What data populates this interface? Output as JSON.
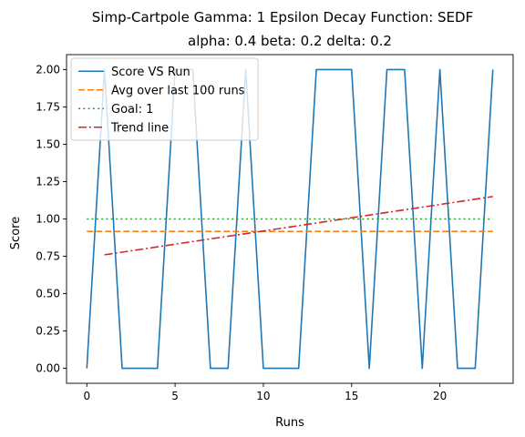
{
  "chart_data": {
    "type": "line",
    "title": "Simp-Cartpole Gamma: 1 Epsilon Decay Function: SEDF",
    "subtitle": "alpha: 0.4  beta: 0.2  delta: 0.2",
    "xlabel": "Runs",
    "ylabel": "Score",
    "xlim": [
      -1.15,
      24.15
    ],
    "ylim": [
      -0.1,
      2.1
    ],
    "xticks": [
      0,
      5,
      10,
      15,
      20
    ],
    "xtick_labels": [
      "0",
      "5",
      "10",
      "15",
      "20"
    ],
    "yticks": [
      0,
      0.25,
      0.5,
      0.75,
      1.0,
      1.25,
      1.5,
      1.75,
      2.0
    ],
    "ytick_labels": [
      "0.00",
      "0.25",
      "0.50",
      "0.75",
      "1.00",
      "1.25",
      "1.50",
      "1.75",
      "2.00"
    ],
    "grid": false,
    "legend_position": "top-left",
    "series": [
      {
        "name": "Score VS Run",
        "style": "solid",
        "color": "#1f77b4",
        "x": [
          0,
          1,
          2,
          3,
          4,
          5,
          6,
          7,
          8,
          9,
          10,
          11,
          12,
          13,
          14,
          15,
          16,
          17,
          18,
          19,
          20,
          21,
          22,
          23
        ],
        "y": [
          0,
          2,
          0,
          0,
          0,
          2,
          2,
          0,
          0,
          2,
          0,
          0,
          0,
          2,
          2,
          2,
          0,
          2,
          2,
          0,
          2,
          0,
          0,
          2
        ]
      },
      {
        "name": "Avg over last 100 runs",
        "style": "dashed",
        "color": "#ff7f0e",
        "x": [
          0,
          23
        ],
        "y": [
          0.9167,
          0.9167
        ]
      },
      {
        "name": "Goal: 1",
        "style": "dotted",
        "color": "#2ca02c",
        "x": [
          0,
          23
        ],
        "y": [
          1.0,
          1.0
        ]
      },
      {
        "name": "Trend line",
        "style": "dashdot",
        "color": "#d62728",
        "x": [
          1,
          23
        ],
        "y": [
          0.76,
          1.15
        ]
      }
    ]
  }
}
